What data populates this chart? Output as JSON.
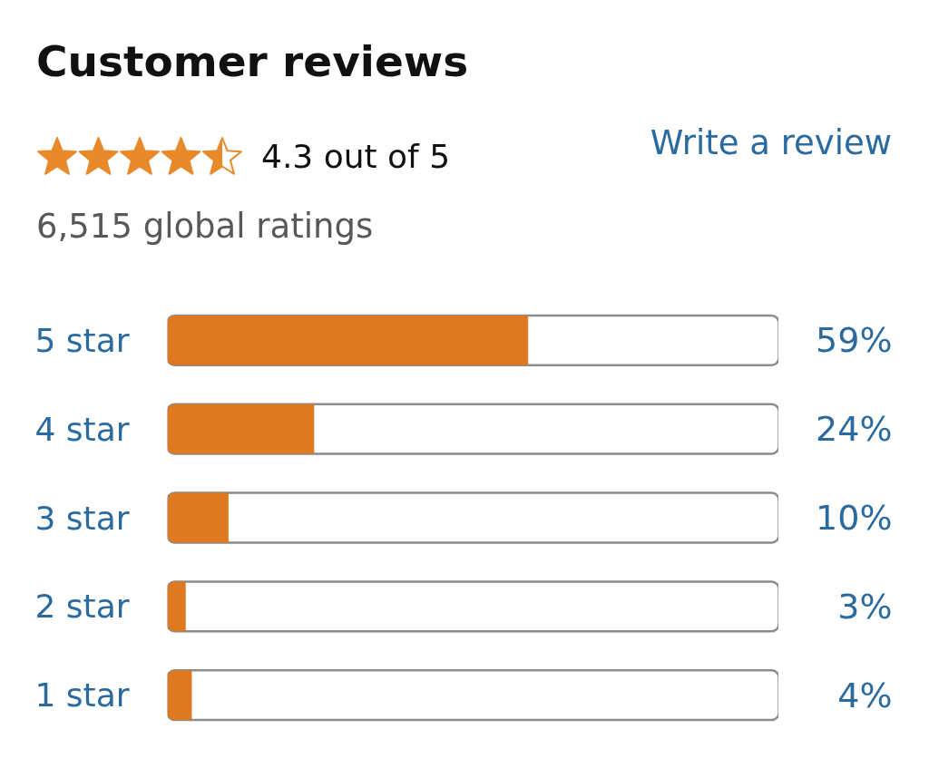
{
  "chart_data": {
    "type": "bar",
    "orientation": "horizontal",
    "title": "Customer reviews",
    "annotations": [
      "4.3 out of 5",
      "6,515 global ratings",
      "Write a review"
    ],
    "categories": [
      "5 star",
      "4 star",
      "3 star",
      "2 star",
      "1 star"
    ],
    "values": [
      59,
      24,
      10,
      3,
      4
    ],
    "value_labels": [
      "59%",
      "24%",
      "10%",
      "3%",
      "4%"
    ],
    "color": "#de7921",
    "xlim": [
      0,
      100
    ],
    "tick_labels": "y"
  }
}
